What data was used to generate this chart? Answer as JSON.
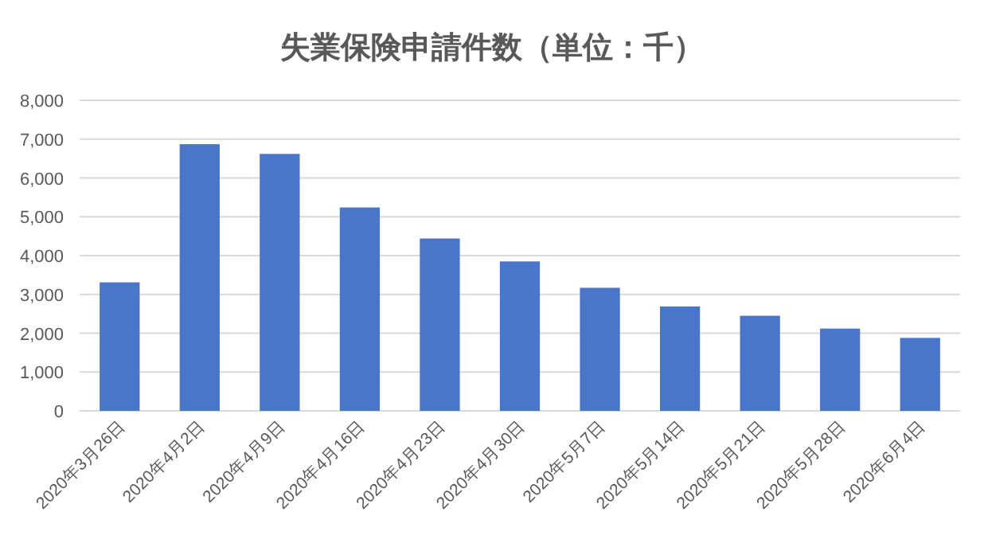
{
  "chart_data": {
    "type": "bar",
    "title": "失業保険申請件数（単位：千）",
    "categories": [
      "2020年3月26日",
      "2020年4月2日",
      "2020年4月9日",
      "2020年4月16日",
      "2020年4月23日",
      "2020年4月30日",
      "2020年5月7日",
      "2020年5月14日",
      "2020年5月21日",
      "2020年5月28日",
      "2020年6月4日"
    ],
    "values": [
      3310,
      6870,
      6620,
      5240,
      4440,
      3850,
      3170,
      2690,
      2450,
      2120,
      1880
    ],
    "color": "#4a76c9",
    "ylim": [
      0,
      8000
    ],
    "yticks": [
      0,
      {
        "value": 1000,
        "label": "1,000"
      },
      {
        "value": 2000,
        "label": "2,000"
      },
      {
        "value": 3000,
        "label": "3,000"
      },
      {
        "value": 4000,
        "label": "4,000"
      },
      {
        "value": 5000,
        "label": "5,000"
      },
      {
        "value": 6000,
        "label": "6,000"
      },
      {
        "value": 7000,
        "label": "7,000"
      },
      {
        "value": 8000,
        "label": "8,000"
      }
    ],
    "grid": "y"
  }
}
